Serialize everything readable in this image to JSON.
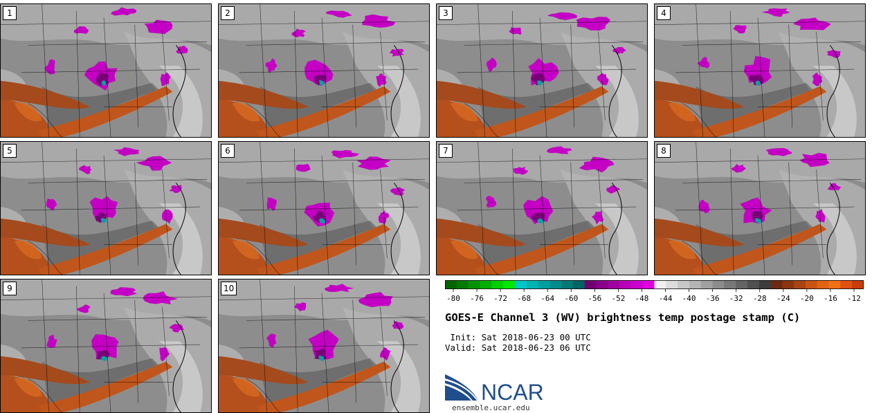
{
  "panels": [
    {
      "label": "1"
    },
    {
      "label": "2"
    },
    {
      "label": "3"
    },
    {
      "label": "4"
    },
    {
      "label": "5"
    },
    {
      "label": "6"
    },
    {
      "label": "7"
    },
    {
      "label": "8"
    },
    {
      "label": "9"
    },
    {
      "label": "10"
    }
  ],
  "colorbar": {
    "ticks": [
      "-80",
      "-76",
      "-72",
      "-68",
      "-64",
      "-60",
      "-56",
      "-52",
      "-48",
      "-44",
      "-40",
      "-36",
      "-32",
      "-28",
      "-24",
      "-20",
      "-16",
      "-12"
    ],
    "colors": [
      "#006400",
      "#007a00",
      "#009400",
      "#00b000",
      "#00d000",
      "#00e800",
      "#00c8c8",
      "#00b4b4",
      "#00a0a0",
      "#008c8c",
      "#007878",
      "#006464",
      "#700070",
      "#8a008a",
      "#a000a0",
      "#b800b8",
      "#cc00cc",
      "#e000e0",
      "#f0f0f0",
      "#dcdcdc",
      "#c8c8c8",
      "#b4b4b4",
      "#a0a0a0",
      "#8c8c8c",
      "#787878",
      "#646464",
      "#505050",
      "#3c3c3c",
      "#6e2a10",
      "#8c3410",
      "#a84414",
      "#c85414",
      "#e06414",
      "#f07014",
      "#e05010",
      "#c83c08"
    ]
  },
  "title": "GOES-E Channel 3 (WV) brightness temp postage stamp (C)",
  "init_label": " Init:",
  "init_value": "Sat 2018-06-23 00 UTC",
  "valid_label": "Valid:",
  "valid_value": "Sat 2018-06-23 06 UTC",
  "logo": {
    "text": "NCAR",
    "colors": {
      "blue": "#1f4e8c",
      "light_blue": "#3a8fd0"
    }
  },
  "website": "ensemble.ucar.edu",
  "map_colors": {
    "moist_gray": "#8c8c8c",
    "dry_orange": "#b5501c",
    "cold_magenta": "#c800c8",
    "cold_cyan": "#0aa0a0",
    "border": "#000000"
  }
}
